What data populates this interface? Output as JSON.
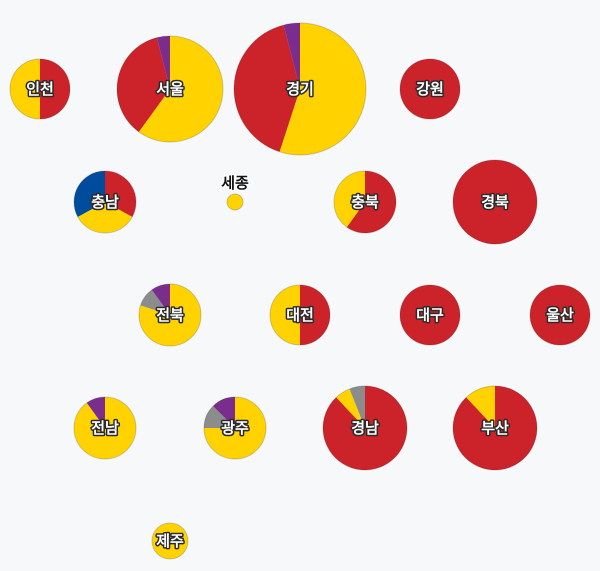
{
  "colors": {
    "red": "#cc2229",
    "yellow": "#ffd200",
    "purple": "#7b2d8e",
    "gray": "#8c8c8c",
    "blue": "#004c9c"
  },
  "regions": [
    {
      "id": "incheon",
      "label": "인천",
      "shares": {
        "red": 0.5,
        "yellow": 0.5
      }
    },
    {
      "id": "seoul",
      "label": "서울",
      "shares": {
        "yellow": 0.6,
        "red": 0.36,
        "purple": 0.04
      }
    },
    {
      "id": "gyeonggi",
      "label": "경기",
      "shares": {
        "yellow": 0.55,
        "red": 0.41,
        "purple": 0.04
      }
    },
    {
      "id": "gangwon",
      "label": "강원",
      "shares": {
        "red": 1.0
      }
    },
    {
      "id": "chungnam",
      "label": "충남",
      "shares": {
        "red": 0.33,
        "yellow": 0.34,
        "blue": 0.33
      }
    },
    {
      "id": "sejong",
      "label": "세종",
      "shares": {
        "yellow": 1.0
      }
    },
    {
      "id": "chungbuk",
      "label": "충북",
      "shares": {
        "red": 0.6,
        "yellow": 0.4
      }
    },
    {
      "id": "gyeongbuk",
      "label": "경북",
      "shares": {
        "red": 1.0
      }
    },
    {
      "id": "jeonbuk",
      "label": "전북",
      "shares": {
        "yellow": 0.8,
        "gray": 0.1,
        "purple": 0.1
      }
    },
    {
      "id": "daejeon",
      "label": "대전",
      "shares": {
        "red": 0.5,
        "yellow": 0.5
      }
    },
    {
      "id": "daegu",
      "label": "대구",
      "shares": {
        "red": 1.0
      }
    },
    {
      "id": "ulsan",
      "label": "울산",
      "shares": {
        "red": 1.0
      }
    },
    {
      "id": "jeonnam",
      "label": "전남",
      "shares": {
        "yellow": 0.9,
        "purple": 0.1
      }
    },
    {
      "id": "gwangju",
      "label": "광주",
      "shares": {
        "yellow": 0.75,
        "gray": 0.125,
        "purple": 0.125
      }
    },
    {
      "id": "gyeongnam",
      "label": "경남",
      "shares": {
        "red": 0.88,
        "yellow": 0.06,
        "gray": 0.06
      }
    },
    {
      "id": "busan",
      "label": "부산",
      "shares": {
        "red": 0.88,
        "yellow": 0.12
      }
    },
    {
      "id": "jeju",
      "label": "제주",
      "shares": {
        "yellow": 1.0
      }
    }
  ]
}
